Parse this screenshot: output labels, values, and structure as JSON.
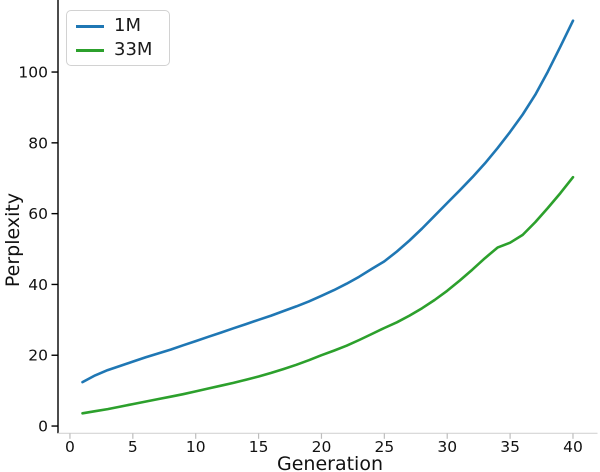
{
  "figure": {
    "background": "#ffffff"
  },
  "chart_data": {
    "type": "line",
    "title": "",
    "xlabel": "Generation",
    "ylabel": "Perplexity",
    "x": [
      1,
      2,
      3,
      4,
      5,
      6,
      7,
      8,
      9,
      10,
      11,
      12,
      13,
      14,
      15,
      16,
      17,
      18,
      19,
      20,
      21,
      22,
      23,
      24,
      25,
      26,
      27,
      28,
      29,
      30,
      31,
      32,
      33,
      34,
      35,
      36,
      37,
      38,
      39,
      40
    ],
    "series": [
      {
        "name": "1M",
        "color": "#1f77b4",
        "values": [
          12.4,
          14.3,
          15.8,
          17.0,
          18.2,
          19.4,
          20.5,
          21.6,
          22.8,
          24.0,
          25.2,
          26.4,
          27.6,
          28.8,
          30.0,
          31.2,
          32.5,
          33.8,
          35.2,
          36.8,
          38.4,
          40.2,
          42.2,
          44.4,
          46.5,
          49.3,
          52.4,
          55.8,
          59.4,
          63.0,
          66.6,
          70.3,
          74.2,
          78.5,
          83.1,
          88.0,
          93.6,
          100.1,
          107.2,
          114.5
        ]
      },
      {
        "name": "33M",
        "color": "#2ca02c",
        "values": [
          3.6,
          4.2,
          4.8,
          5.5,
          6.2,
          6.9,
          7.6,
          8.3,
          9.0,
          9.8,
          10.6,
          11.4,
          12.2,
          13.1,
          14.0,
          15.0,
          16.1,
          17.3,
          18.6,
          20.0,
          21.3,
          22.7,
          24.3,
          26.0,
          27.7,
          29.3,
          31.2,
          33.3,
          35.6,
          38.2,
          41.1,
          44.2,
          47.4,
          50.4,
          51.8,
          54.0,
          57.6,
          61.6,
          65.8,
          70.3
        ]
      }
    ],
    "xticks": [
      0,
      5,
      10,
      15,
      20,
      25,
      30,
      35,
      40
    ],
    "yticks": [
      0,
      20,
      40,
      60,
      80,
      100
    ],
    "xlim": [
      -0.95,
      41.95
    ],
    "ylim": [
      -2.05,
      120.35
    ],
    "grid": false,
    "legend_position": "upper-left",
    "colors": {
      "left_spine": "#000000",
      "bottom_spine": "#d4d4d4",
      "y_tick": "#000000",
      "x_tick": "#bdbdbd",
      "tick_label": "#111111",
      "legend_border": "#d2d2d2"
    }
  }
}
